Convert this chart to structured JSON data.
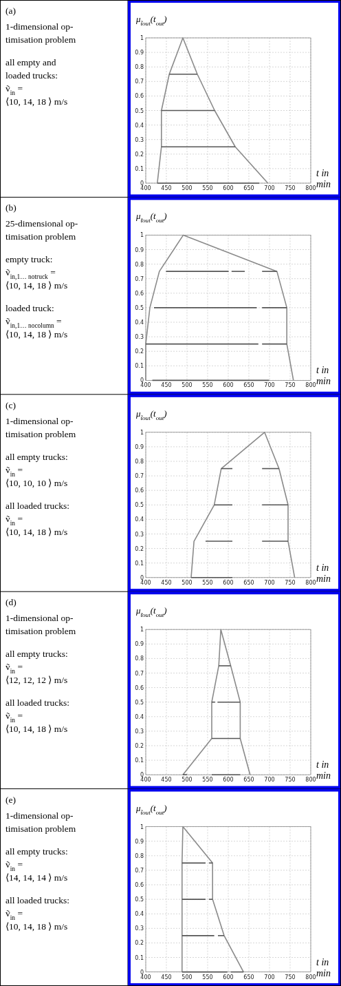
{
  "chart_data": [
    {
      "type": "line",
      "annotations": [
        "(a)",
        "1-dimensional op-\ntimisation problem",
        "all empty and\nloaded trucks:\nṽ$_{in}$ =\n⟨10, 14, 18 ⟩ m/s"
      ],
      "ylabel": "μ$_{t̃out}$(t$_{out}$)",
      "xlabel": "t in min",
      "xlim": [
        400,
        800
      ],
      "ylim": [
        0,
        1
      ],
      "xticks": [
        400,
        450,
        500,
        550,
        600,
        650,
        700,
        750,
        800
      ],
      "yticks": [
        0,
        0.1,
        0.2,
        0.3,
        0.4,
        0.5,
        0.6,
        0.7,
        0.8,
        0.9,
        1
      ],
      "grid": true,
      "series": [
        {
          "color": "#8a8a8a",
          "x": [
            428,
            438,
            438,
            457,
            490,
            525,
            567,
            617,
            696
          ],
          "values": [
            0,
            0.25,
            0.5,
            0.75,
            1,
            0.75,
            0.5,
            0.25,
            0
          ]
        },
        {
          "color": "#555555",
          "x": [
            457,
            525
          ],
          "values": [
            0.75,
            0.75
          ]
        },
        {
          "color": "#555555",
          "x": [
            438,
            567
          ],
          "values": [
            0.5,
            0.5
          ]
        },
        {
          "color": "#555555",
          "x": [
            438,
            617
          ],
          "values": [
            0.25,
            0.25
          ]
        },
        {
          "color": "#555555",
          "x": [
            428,
            675
          ],
          "values": [
            0,
            0
          ]
        }
      ]
    },
    {
      "type": "line",
      "annotations": [
        "(b)",
        "25-dimensional op-\ntimisation problem",
        "empty truck:\nṽ$_{in,1… no}$$_{truck}$ =\n⟨10, 14, 18 ⟩ m/s",
        "loaded truck:\nṽ$_{in,1… no}$$_{column}$ =\n⟨10, 14, 18 ⟩ m/s"
      ],
      "ylabel": "μ$_{t̃out}$(t$_{out}$)",
      "xlabel": "t in min",
      "xlim": [
        400,
        800
      ],
      "ylim": [
        0,
        1
      ],
      "xticks": [
        400,
        450,
        500,
        550,
        600,
        650,
        700,
        750,
        800
      ],
      "yticks": [
        0,
        0.1,
        0.2,
        0.3,
        0.4,
        0.5,
        0.6,
        0.7,
        0.8,
        0.9,
        1
      ],
      "grid": true,
      "series": [
        {
          "color": "#8a8a8a",
          "x": [
            400,
            400,
            410,
            433,
            491,
            718,
            742,
            742,
            758
          ],
          "values": [
            0,
            0.25,
            0.5,
            0.75,
            1,
            0.75,
            0.5,
            0.25,
            0
          ]
        },
        {
          "color": "#555555",
          "x": [
            449,
            601
          ],
          "values": [
            0.75,
            0.75
          ]
        },
        {
          "color": "#555555",
          "x": [
            608,
            640
          ],
          "values": [
            0.75,
            0.75
          ]
        },
        {
          "color": "#555555",
          "x": [
            682,
            718
          ],
          "values": [
            0.75,
            0.75
          ]
        },
        {
          "color": "#555555",
          "x": [
            420,
            669
          ],
          "values": [
            0.5,
            0.5
          ]
        },
        {
          "color": "#555555",
          "x": [
            682,
            742
          ],
          "values": [
            0.5,
            0.5
          ]
        },
        {
          "color": "#555555",
          "x": [
            400,
            673
          ],
          "values": [
            0.25,
            0.25
          ]
        },
        {
          "color": "#555555",
          "x": [
            682,
            742
          ],
          "values": [
            0.25,
            0.25
          ]
        },
        {
          "color": "#555555",
          "x": [
            416,
            699
          ],
          "values": [
            0,
            0
          ]
        }
      ]
    },
    {
      "type": "line",
      "annotations": [
        "(c)",
        "1-dimensional op-\ntimisation problem",
        "all empty trucks:\nṽ$_{in}$ =\n⟨10, 10, 10 ⟩ m/s",
        "all loaded trucks:\nṽ$_{in}$ =\n⟨10, 14, 18 ⟩ m/s"
      ],
      "ylabel": "μ$_{t̃out}$(t$_{out}$)",
      "xlabel": "t in min",
      "xlim": [
        400,
        800
      ],
      "ylim": [
        0,
        1
      ],
      "xticks": [
        400,
        450,
        500,
        550,
        600,
        650,
        700,
        750,
        800
      ],
      "yticks": [
        0,
        0.1,
        0.2,
        0.3,
        0.4,
        0.5,
        0.6,
        0.7,
        0.8,
        0.9,
        1
      ],
      "grid": true,
      "series": [
        {
          "color": "#8a8a8a",
          "x": [
            510,
            517,
            566,
            583,
            688,
            723,
            745,
            745,
            761
          ],
          "values": [
            0,
            0.25,
            0.5,
            0.75,
            1,
            0.75,
            0.5,
            0.25,
            0
          ]
        },
        {
          "color": "#555555",
          "x": [
            583,
            610
          ],
          "values": [
            0.75,
            0.75
          ]
        },
        {
          "color": "#555555",
          "x": [
            682,
            723
          ],
          "values": [
            0.75,
            0.75
          ]
        },
        {
          "color": "#555555",
          "x": [
            566,
            610
          ],
          "values": [
            0.5,
            0.5
          ]
        },
        {
          "color": "#555555",
          "x": [
            682,
            745
          ],
          "values": [
            0.5,
            0.5
          ]
        },
        {
          "color": "#555555",
          "x": [
            545,
            610
          ],
          "values": [
            0.25,
            0.25
          ]
        },
        {
          "color": "#555555",
          "x": [
            682,
            745
          ],
          "values": [
            0.25,
            0.25
          ]
        },
        {
          "color": "#555555",
          "x": [
            510,
            610
          ],
          "values": [
            0,
            0
          ]
        }
      ]
    },
    {
      "type": "line",
      "annotations": [
        "(d)",
        "1-dimensional op-\ntimisation problem",
        "all empty trucks:\nṽ$_{in}$ =\n⟨12, 12, 12 ⟩ m/s",
        "all loaded trucks:\nṽ$_{in}$ =\n⟨10, 14, 18 ⟩ m/s"
      ],
      "ylabel": "μ$_{t̃out}$(t$_{out}$)",
      "xlabel": "t in min",
      "xlim": [
        400,
        800
      ],
      "ylim": [
        0,
        1
      ],
      "xticks": [
        400,
        450,
        500,
        550,
        600,
        650,
        700,
        750,
        800
      ],
      "yticks": [
        0,
        0.1,
        0.2,
        0.3,
        0.4,
        0.5,
        0.6,
        0.7,
        0.8,
        0.9,
        1
      ],
      "grid": true,
      "series": [
        {
          "color": "#8a8a8a",
          "x": [
            490,
            560,
            560,
            577,
            582,
            606,
            629,
            629,
            653
          ],
          "values": [
            0,
            0.25,
            0.5,
            0.75,
            1,
            0.75,
            0.5,
            0.25,
            0
          ]
        },
        {
          "color": "#555555",
          "x": [
            577,
            606
          ],
          "values": [
            0.75,
            0.75
          ]
        },
        {
          "color": "#555555",
          "x": [
            560,
            568
          ],
          "values": [
            0.5,
            0.5
          ]
        },
        {
          "color": "#555555",
          "x": [
            574,
            629
          ],
          "values": [
            0.5,
            0.5
          ]
        },
        {
          "color": "#555555",
          "x": [
            560,
            629
          ],
          "values": [
            0.25,
            0.25
          ]
        },
        {
          "color": "#555555",
          "x": [
            490,
            500
          ],
          "values": [
            0,
            0
          ]
        },
        {
          "color": "#555555",
          "x": [
            560,
            629
          ],
          "values": [
            0,
            0
          ]
        }
      ]
    },
    {
      "type": "line",
      "annotations": [
        "(e)",
        "1-dimensional op-\ntimisation problem",
        "all empty trucks:\nṽ$_{in}$ =\n⟨14, 14, 14 ⟩ m/s",
        "all loaded trucks:\nṽ$_{in}$ =\n⟨10, 14, 18 ⟩ m/s"
      ],
      "ylabel": "μ$_{t̃out}$(t$_{out}$)",
      "xlabel": "t in min",
      "xlim": [
        400,
        800
      ],
      "ylim": [
        0,
        1
      ],
      "xticks": [
        400,
        450,
        500,
        550,
        600,
        650,
        700,
        750,
        800
      ],
      "yticks": [
        0,
        0.1,
        0.2,
        0.3,
        0.4,
        0.5,
        0.6,
        0.7,
        0.8,
        0.9,
        1
      ],
      "grid": true,
      "series": [
        {
          "color": "#8a8a8a",
          "x": [
            488,
            488,
            488,
            488,
            490,
            562,
            562,
            590,
            637
          ],
          "values": [
            0,
            0.25,
            0.5,
            0.75,
            1,
            0.75,
            0.5,
            0.25,
            0
          ]
        },
        {
          "color": "#555555",
          "x": [
            488,
            545
          ],
          "values": [
            0.75,
            0.75
          ]
        },
        {
          "color": "#555555",
          "x": [
            553,
            562
          ],
          "values": [
            0.75,
            0.75
          ]
        },
        {
          "color": "#555555",
          "x": [
            488,
            545
          ],
          "values": [
            0.5,
            0.5
          ]
        },
        {
          "color": "#555555",
          "x": [
            553,
            562
          ],
          "values": [
            0.5,
            0.5
          ]
        },
        {
          "color": "#555555",
          "x": [
            488,
            566
          ],
          "values": [
            0.25,
            0.25
          ]
        },
        {
          "color": "#555555",
          "x": [
            575,
            590
          ],
          "values": [
            0.25,
            0.25
          ]
        },
        {
          "color": "#555555",
          "x": [
            488,
            598
          ],
          "values": [
            0,
            0
          ]
        },
        {
          "color": "#555555",
          "x": [
            606,
            637
          ],
          "values": [
            0,
            0
          ]
        }
      ]
    }
  ]
}
